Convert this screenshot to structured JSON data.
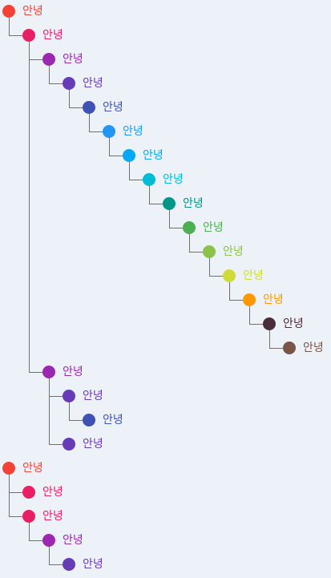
{
  "tree": [
    {
      "label": "안녕",
      "color": "#f44336",
      "children": [
        {
          "label": "안녕",
          "color": "#e91e63",
          "children": [
            {
              "label": "안녕",
              "color": "#9c27b0",
              "children": [
                {
                  "label": "안녕",
                  "color": "#673ab7",
                  "children": [
                    {
                      "label": "안녕",
                      "color": "#3f51b5",
                      "children": [
                        {
                          "label": "안녕",
                          "color": "#2196f3",
                          "children": [
                            {
                              "label": "안녕",
                              "color": "#03a9f4",
                              "children": [
                                {
                                  "label": "안녕",
                                  "color": "#00bcd4",
                                  "children": [
                                    {
                                      "label": "안녕",
                                      "color": "#009688",
                                      "children": [
                                        {
                                          "label": "안녕",
                                          "color": "#4caf50",
                                          "children": [
                                            {
                                              "label": "안녕",
                                              "color": "#8bc34a",
                                              "children": [
                                                {
                                                  "label": "안녕",
                                                  "color": "#cddc39",
                                                  "children": [
                                                    {
                                                      "label": "안녕",
                                                      "color": "#ff9800",
                                                      "children": [
                                                        {
                                                          "label": "안녕",
                                                          "color": "#4a2c3a",
                                                          "children": [
                                                            {
                                                              "label": "안녕",
                                                              "color": "#795548",
                                                              "children": []
                                                            }
                                                          ]
                                                        }
                                                      ]
                                                    }
                                                  ]
                                                }
                                              ]
                                            }
                                          ]
                                        }
                                      ]
                                    }
                                  ]
                                }
                              ]
                            }
                          ]
                        }
                      ]
                    }
                  ]
                }
              ]
            },
            {
              "label": "안녕",
              "color": "#9c27b0",
              "children": [
                {
                  "label": "안녕",
                  "color": "#673ab7",
                  "children": [
                    {
                      "label": "안녕",
                      "color": "#3f51b5",
                      "children": []
                    }
                  ]
                },
                {
                  "label": "안녕",
                  "color": "#673ab7",
                  "children": []
                }
              ]
            }
          ]
        }
      ]
    },
    {
      "label": "안녕",
      "color": "#f44336",
      "children": [
        {
          "label": "안녕",
          "color": "#e91e63",
          "children": []
        },
        {
          "label": "안녕",
          "color": "#e91e63",
          "children": [
            {
              "label": "안녕",
              "color": "#9c27b0",
              "children": [
                {
                  "label": "안녕",
                  "color": "#673ab7",
                  "children": []
                }
              ]
            }
          ]
        }
      ]
    }
  ]
}
